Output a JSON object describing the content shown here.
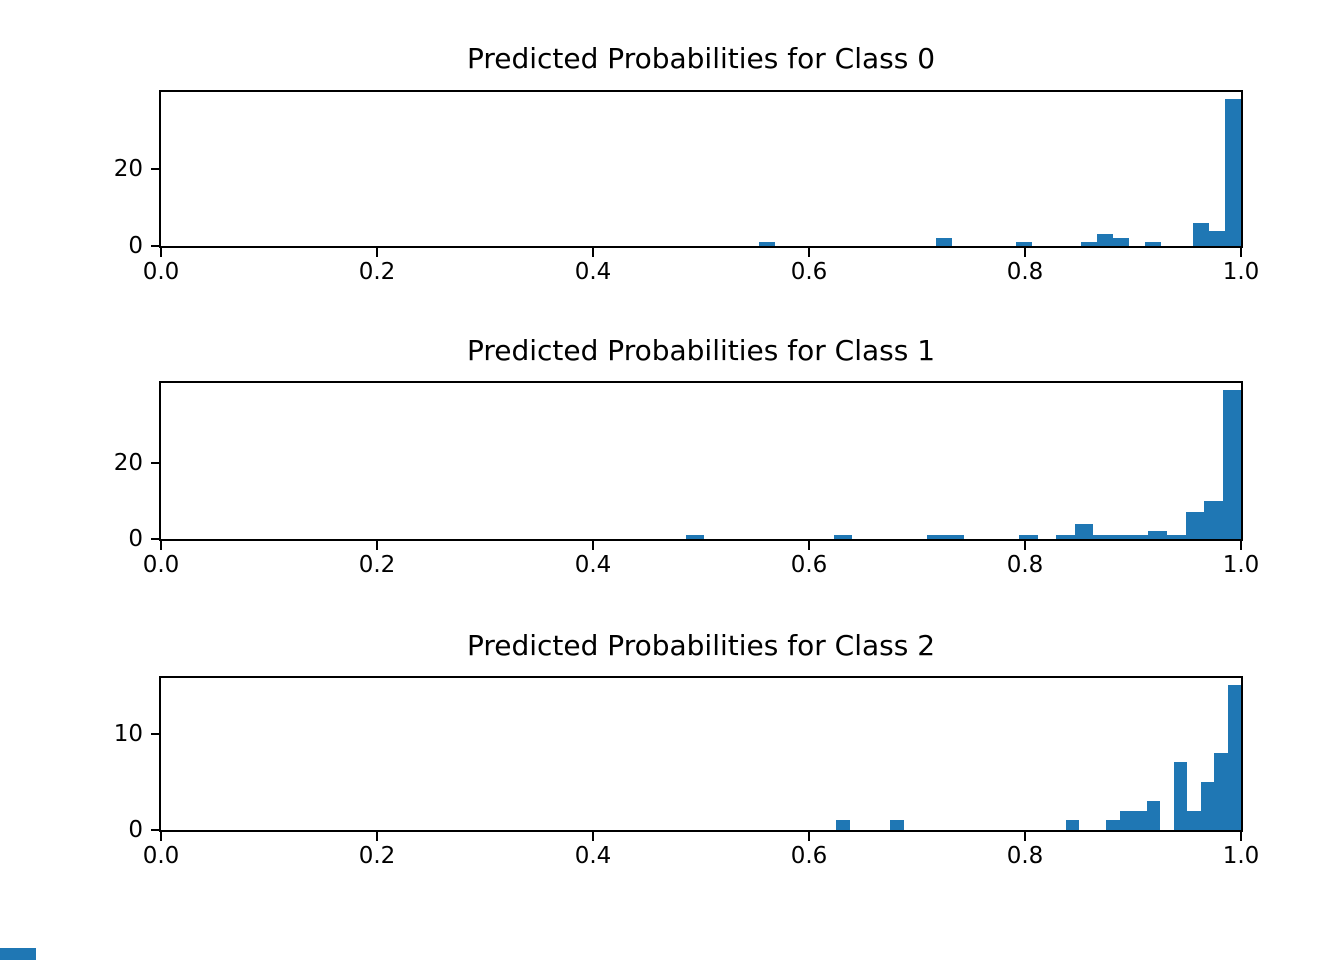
{
  "figure": {
    "background": "#ffffff",
    "bar_color": "#1f77b4",
    "axis_color": "#000000",
    "artifact_color": "#1f77b4"
  },
  "chart_data": [
    {
      "type": "bar",
      "subtype": "histogram",
      "title": "Predicted Probabilities for Class 0",
      "xlabel": "",
      "ylabel": "",
      "xlim": [
        0.0,
        1.0
      ],
      "ylim": [
        0,
        39.9
      ],
      "grid": false,
      "legend": null,
      "xticks": [
        {
          "value": 0.0,
          "label": "0.0"
        },
        {
          "value": 0.2,
          "label": "0.2"
        },
        {
          "value": 0.4,
          "label": "0.4"
        },
        {
          "value": 0.6,
          "label": "0.6"
        },
        {
          "value": 0.8,
          "label": "0.8"
        },
        {
          "value": 1.0,
          "label": "1.0"
        }
      ],
      "yticks": [
        {
          "value": 0,
          "label": "0"
        },
        {
          "value": 20,
          "label": "20"
        }
      ],
      "bars": [
        {
          "x0": 0.5533,
          "x1": 0.5682,
          "count": 1
        },
        {
          "x0": 0.7173,
          "x1": 0.7322,
          "count": 2
        },
        {
          "x0": 0.7918,
          "x1": 0.8067,
          "count": 1
        },
        {
          "x0": 0.8514,
          "x1": 0.8663,
          "count": 1
        },
        {
          "x0": 0.8663,
          "x1": 0.8812,
          "count": 3
        },
        {
          "x0": 0.8812,
          "x1": 0.8961,
          "count": 2
        },
        {
          "x0": 0.911,
          "x1": 0.9259,
          "count": 1
        },
        {
          "x0": 0.9557,
          "x1": 0.9706,
          "count": 6
        },
        {
          "x0": 0.9706,
          "x1": 0.9855,
          "count": 4
        },
        {
          "x0": 0.9855,
          "x1": 1.0,
          "count": 38
        }
      ]
    },
    {
      "type": "bar",
      "subtype": "histogram",
      "title": "Predicted Probabilities for Class 1",
      "xlabel": "",
      "ylabel": "",
      "xlim": [
        0.0,
        1.0
      ],
      "ylim": [
        0,
        40.95
      ],
      "grid": false,
      "legend": null,
      "xticks": [
        {
          "value": 0.0,
          "label": "0.0"
        },
        {
          "value": 0.2,
          "label": "0.2"
        },
        {
          "value": 0.4,
          "label": "0.4"
        },
        {
          "value": 0.6,
          "label": "0.6"
        },
        {
          "value": 0.8,
          "label": "0.8"
        },
        {
          "value": 1.0,
          "label": "1.0"
        }
      ],
      "yticks": [
        {
          "value": 0,
          "label": "0"
        },
        {
          "value": 20,
          "label": "20"
        }
      ],
      "bars": [
        {
          "x0": 0.486,
          "x1": 0.5031,
          "count": 1
        },
        {
          "x0": 0.6231,
          "x1": 0.6402,
          "count": 1
        },
        {
          "x0": 0.7088,
          "x1": 0.7259,
          "count": 1
        },
        {
          "x0": 0.7259,
          "x1": 0.743,
          "count": 1
        },
        {
          "x0": 0.7944,
          "x1": 0.8116,
          "count": 1
        },
        {
          "x0": 0.8287,
          "x1": 0.8458,
          "count": 1
        },
        {
          "x0": 0.8458,
          "x1": 0.863,
          "count": 4
        },
        {
          "x0": 0.863,
          "x1": 0.8801,
          "count": 1
        },
        {
          "x0": 0.8801,
          "x1": 0.8972,
          "count": 1
        },
        {
          "x0": 0.8972,
          "x1": 0.9143,
          "count": 1
        },
        {
          "x0": 0.9143,
          "x1": 0.9315,
          "count": 2
        },
        {
          "x0": 0.9315,
          "x1": 0.9486,
          "count": 1
        },
        {
          "x0": 0.9486,
          "x1": 0.9657,
          "count": 7
        },
        {
          "x0": 0.9657,
          "x1": 0.9829,
          "count": 10
        },
        {
          "x0": 0.9829,
          "x1": 1.0,
          "count": 39
        }
      ]
    },
    {
      "type": "bar",
      "subtype": "histogram",
      "title": "Predicted Probabilities for Class 2",
      "xlabel": "",
      "ylabel": "",
      "xlim": [
        0.0,
        1.0
      ],
      "ylim": [
        0,
        15.75
      ],
      "grid": false,
      "legend": null,
      "xticks": [
        {
          "value": 0.0,
          "label": "0.0"
        },
        {
          "value": 0.2,
          "label": "0.2"
        },
        {
          "value": 0.4,
          "label": "0.4"
        },
        {
          "value": 0.6,
          "label": "0.6"
        },
        {
          "value": 0.8,
          "label": "0.8"
        },
        {
          "value": 1.0,
          "label": "1.0"
        }
      ],
      "yticks": [
        {
          "value": 0,
          "label": "0"
        },
        {
          "value": 10,
          "label": "10"
        }
      ],
      "bars": [
        {
          "x0": 0.625,
          "x1": 0.6375,
          "count": 1
        },
        {
          "x0": 0.675,
          "x1": 0.6875,
          "count": 1
        },
        {
          "x0": 0.8375,
          "x1": 0.85,
          "count": 1
        },
        {
          "x0": 0.875,
          "x1": 0.8875,
          "count": 1
        },
        {
          "x0": 0.8875,
          "x1": 0.9,
          "count": 2
        },
        {
          "x0": 0.9,
          "x1": 0.9125,
          "count": 2
        },
        {
          "x0": 0.9125,
          "x1": 0.925,
          "count": 3
        },
        {
          "x0": 0.9375,
          "x1": 0.95,
          "count": 7
        },
        {
          "x0": 0.95,
          "x1": 0.9625,
          "count": 2
        },
        {
          "x0": 0.9625,
          "x1": 0.975,
          "count": 5
        },
        {
          "x0": 0.975,
          "x1": 0.9875,
          "count": 8
        },
        {
          "x0": 0.9875,
          "x1": 1.0,
          "count": 15
        }
      ]
    }
  ]
}
